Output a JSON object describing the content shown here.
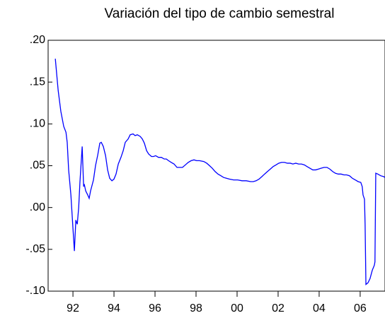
{
  "chart_data": {
    "type": "line",
    "title": "Variación del tipo de cambio semestral",
    "x": [
      1991.14,
      1991.28,
      1991.41,
      1991.55,
      1991.66,
      1991.72,
      1991.79,
      1991.9,
      1992.0,
      1992.07,
      1992.14,
      1992.21,
      1992.28,
      1992.34,
      1992.45,
      1992.52,
      1992.55,
      1992.62,
      1992.72,
      1992.79,
      1992.86,
      1993.0,
      1993.1,
      1993.21,
      1993.31,
      1993.38,
      1993.48,
      1993.59,
      1993.69,
      1993.79,
      1993.9,
      1994.0,
      1994.1,
      1994.21,
      1994.34,
      1994.45,
      1994.55,
      1994.69,
      1994.79,
      1994.93,
      1995.03,
      1995.14,
      1995.28,
      1995.38,
      1995.48,
      1995.59,
      1995.69,
      1995.83,
      1995.93,
      1996.03,
      1996.17,
      1996.31,
      1996.45,
      1996.55,
      1996.66,
      1996.79,
      1996.93,
      1997.07,
      1997.21,
      1997.34,
      1997.48,
      1997.62,
      1997.76,
      1997.9,
      1998.03,
      1998.17,
      1998.38,
      1998.52,
      1998.66,
      1998.79,
      1998.93,
      1999.07,
      1999.21,
      1999.34,
      1999.48,
      1999.62,
      1999.83,
      2000.03,
      2000.24,
      2000.45,
      2000.66,
      2000.79,
      2000.93,
      2001.07,
      2001.21,
      2001.34,
      2001.48,
      2001.62,
      2001.76,
      2001.9,
      2002.03,
      2002.17,
      2002.31,
      2002.45,
      2002.59,
      2002.72,
      2002.86,
      2003.0,
      2003.14,
      2003.28,
      2003.41,
      2003.55,
      2003.69,
      2003.83,
      2003.97,
      2004.1,
      2004.24,
      2004.38,
      2004.52,
      2004.66,
      2004.79,
      2004.93,
      2005.07,
      2005.21,
      2005.34,
      2005.48,
      2005.62,
      2005.76,
      2005.9,
      2006.03,
      2006.1,
      2006.14,
      2006.21,
      2006.24,
      2006.28,
      2006.38,
      2006.48,
      2006.59,
      2006.69,
      2006.72,
      2006.76,
      2006.86,
      2007.0,
      2007.14,
      2007.21
    ],
    "series": [
      {
        "color": "#0000ff",
        "values": [
          0.178,
          0.14,
          0.115,
          0.097,
          0.09,
          0.078,
          0.045,
          0.015,
          -0.025,
          -0.052,
          -0.015,
          -0.02,
          0.0,
          0.03,
          0.073,
          0.025,
          0.028,
          0.02,
          0.015,
          0.011,
          0.02,
          0.033,
          0.05,
          0.063,
          0.077,
          0.078,
          0.073,
          0.062,
          0.045,
          0.035,
          0.032,
          0.034,
          0.04,
          0.052,
          0.06,
          0.068,
          0.078,
          0.082,
          0.087,
          0.088,
          0.086,
          0.087,
          0.085,
          0.082,
          0.077,
          0.068,
          0.064,
          0.061,
          0.061,
          0.062,
          0.06,
          0.06,
          0.058,
          0.058,
          0.056,
          0.054,
          0.052,
          0.048,
          0.048,
          0.048,
          0.051,
          0.054,
          0.056,
          0.057,
          0.056,
          0.056,
          0.055,
          0.053,
          0.05,
          0.047,
          0.043,
          0.04,
          0.038,
          0.036,
          0.035,
          0.034,
          0.033,
          0.033,
          0.032,
          0.032,
          0.031,
          0.031,
          0.032,
          0.034,
          0.037,
          0.04,
          0.043,
          0.046,
          0.049,
          0.051,
          0.053,
          0.054,
          0.054,
          0.053,
          0.053,
          0.052,
          0.053,
          0.052,
          0.052,
          0.051,
          0.049,
          0.047,
          0.045,
          0.045,
          0.046,
          0.047,
          0.048,
          0.048,
          0.046,
          0.043,
          0.041,
          0.04,
          0.04,
          0.039,
          0.039,
          0.038,
          0.035,
          0.033,
          0.031,
          0.03,
          0.025,
          0.015,
          0.01,
          -0.02,
          -0.092,
          -0.09,
          -0.085,
          -0.075,
          -0.069,
          -0.065,
          0.041,
          0.04,
          0.038,
          0.037,
          0.036
        ]
      }
    ],
    "xlim": [
      1990.79,
      2007.21
    ],
    "xticks": [
      {
        "value": 1992,
        "label": "92"
      },
      {
        "value": 1994,
        "label": "94"
      },
      {
        "value": 1996,
        "label": "96"
      },
      {
        "value": 1998,
        "label": "98"
      },
      {
        "value": 2000,
        "label": "00"
      },
      {
        "value": 2002,
        "label": "02"
      },
      {
        "value": 2004,
        "label": "04"
      },
      {
        "value": 2006,
        "label": "06"
      }
    ],
    "ylim": [
      -0.1,
      0.2
    ],
    "yticks": [
      {
        "value": -0.1,
        "label": "-.10"
      },
      {
        "value": -0.05,
        "label": "-.05"
      },
      {
        "value": 0.0,
        "label": ".00"
      },
      {
        "value": 0.05,
        "label": ".05"
      },
      {
        "value": 0.1,
        "label": ".10"
      },
      {
        "value": 0.15,
        "label": ".15"
      },
      {
        "value": 0.2,
        "label": ".20"
      }
    ]
  }
}
